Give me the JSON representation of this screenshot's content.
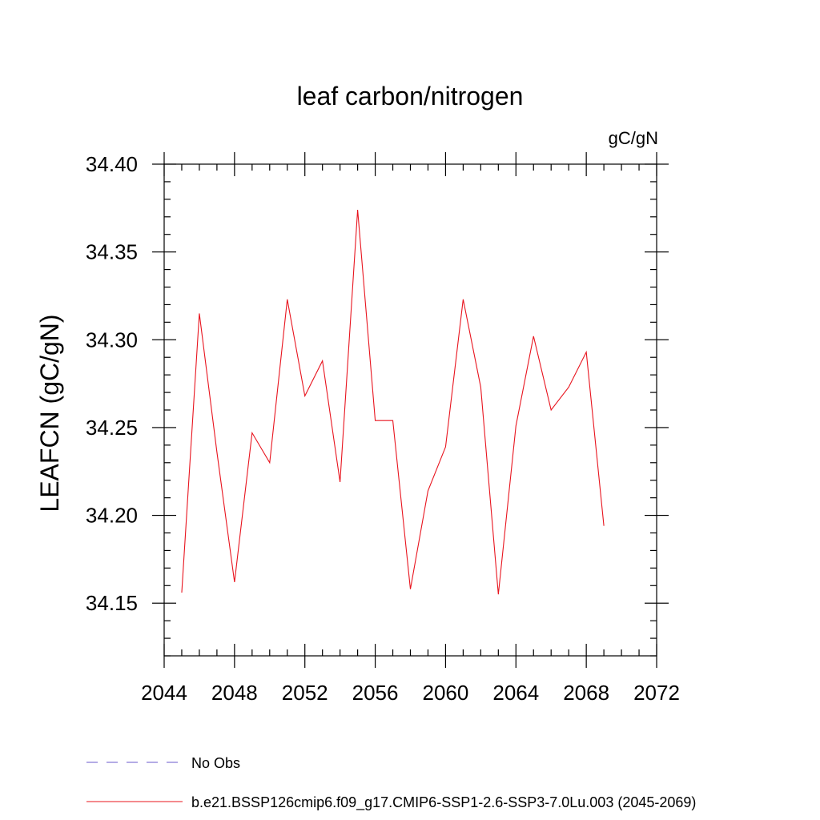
{
  "chart_data": {
    "type": "line",
    "title": "leaf carbon/nitrogen",
    "units": "gC/gN",
    "ylabel": "LEAFCN  (gC/gN)",
    "xlabel": "",
    "xlim": [
      2044,
      2072
    ],
    "ylim": [
      34.12,
      34.4
    ],
    "x_ticks": [
      2044,
      2048,
      2052,
      2056,
      2060,
      2064,
      2068,
      2072
    ],
    "x_tick_labels": [
      "2044",
      "2048",
      "2052",
      "2056",
      "2060",
      "2064",
      "2068",
      "2072"
    ],
    "y_ticks": [
      34.15,
      34.2,
      34.25,
      34.3,
      34.35,
      34.4
    ],
    "y_tick_labels": [
      "34.15",
      "34.20",
      "34.25",
      "34.30",
      "34.35",
      "34.40"
    ],
    "x_minor_step": 1,
    "y_minor_step": 0.01,
    "series": [
      {
        "name": "b.e21.BSSP126cmip6.f09_g17.CMIP6-SSP1-2.6-SSP3-7.0Lu.003 (2045-2069)",
        "color": "#e8141e",
        "dash": "solid",
        "x": [
          2045,
          2046,
          2047,
          2048,
          2049,
          2050,
          2051,
          2052,
          2053,
          2054,
          2055,
          2056,
          2057,
          2058,
          2059,
          2060,
          2061,
          2062,
          2063,
          2064,
          2065,
          2066,
          2067,
          2068,
          2069
        ],
        "values": [
          34.156,
          34.315,
          34.236,
          34.162,
          34.247,
          34.23,
          34.323,
          34.268,
          34.288,
          34.219,
          34.374,
          34.254,
          34.254,
          34.158,
          34.214,
          34.239,
          34.323,
          34.273,
          34.155,
          34.251,
          34.302,
          34.26,
          34.273,
          34.293,
          34.194
        ]
      }
    ],
    "legend": [
      {
        "label": "No Obs",
        "color": "#6a5acd",
        "dash": "dashed"
      },
      {
        "label": "b.e21.BSSP126cmip6.f09_g17.CMIP6-SSP1-2.6-SSP3-7.0Lu.003 (2045-2069)",
        "color": "#e8141e",
        "dash": "solid"
      }
    ],
    "legend_position": "bottom-left",
    "grid": false
  }
}
